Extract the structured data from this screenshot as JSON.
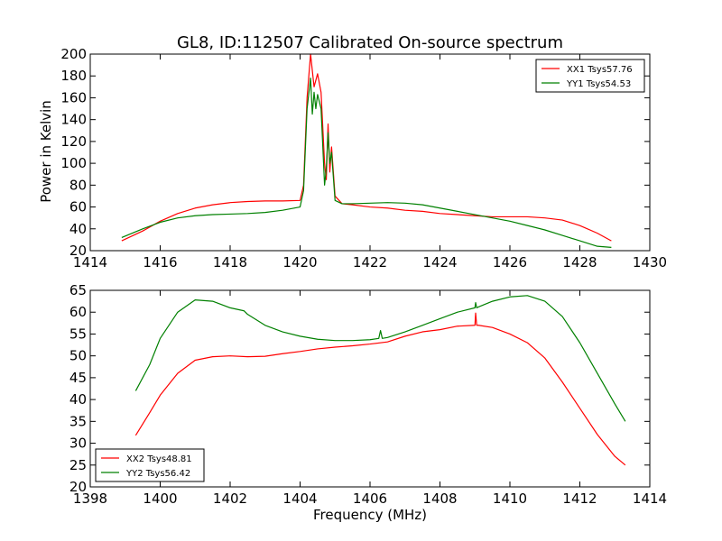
{
  "chart_data": [
    {
      "type": "line",
      "title": "GL8, ID:112507 Calibrated On-source spectrum",
      "xlabel": "",
      "ylabel": "Power in Kelvin",
      "xlim": [
        1414,
        1430
      ],
      "ylim": [
        20,
        200
      ],
      "xticks": [
        1414,
        1416,
        1418,
        1420,
        1422,
        1424,
        1426,
        1428,
        1430
      ],
      "yticks": [
        20,
        40,
        60,
        80,
        100,
        120,
        140,
        160,
        180,
        200
      ],
      "legend_position": "top-right",
      "grid": false,
      "series": [
        {
          "name": "XX1 Tsys57.76",
          "color": "#ff0000",
          "x": [
            1414.9,
            1415.5,
            1416.0,
            1416.5,
            1417.0,
            1417.5,
            1418.0,
            1418.5,
            1419.0,
            1419.5,
            1420.0,
            1420.1,
            1420.2,
            1420.3,
            1420.4,
            1420.5,
            1420.6,
            1420.7,
            1420.75,
            1420.8,
            1420.85,
            1420.9,
            1421.0,
            1421.2,
            1421.5,
            1422.0,
            1422.5,
            1423.0,
            1423.5,
            1424.0,
            1424.5,
            1425.0,
            1425.5,
            1426.0,
            1426.5,
            1427.0,
            1427.5,
            1428.0,
            1428.5,
            1428.9
          ],
          "y": [
            29,
            38,
            47,
            54,
            59,
            62,
            64,
            65,
            65.5,
            65.5,
            66,
            80,
            160,
            200,
            170,
            182,
            165,
            100,
            85,
            136,
            92,
            115,
            70,
            63,
            62,
            60,
            59,
            57,
            56,
            54,
            53,
            52,
            51,
            51,
            51,
            50,
            48,
            43,
            36,
            29
          ]
        },
        {
          "name": "YY1 Tsys54.53",
          "color": "#008000",
          "x": [
            1414.9,
            1415.5,
            1416.0,
            1416.5,
            1417.0,
            1417.5,
            1418.0,
            1418.5,
            1419.0,
            1419.5,
            1420.0,
            1420.1,
            1420.2,
            1420.3,
            1420.35,
            1420.4,
            1420.45,
            1420.5,
            1420.6,
            1420.7,
            1420.75,
            1420.8,
            1420.85,
            1420.9,
            1421.0,
            1421.2,
            1421.5,
            1422.0,
            1422.5,
            1423.0,
            1423.5,
            1424.0,
            1424.5,
            1425.0,
            1425.5,
            1426.0,
            1426.5,
            1427.0,
            1427.5,
            1428.0,
            1428.5,
            1428.9
          ],
          "y": [
            32,
            40,
            46,
            50,
            52,
            53,
            53.5,
            54,
            55,
            57,
            60,
            75,
            150,
            178,
            145,
            165,
            150,
            163,
            150,
            80,
            95,
            128,
            100,
            110,
            66,
            63,
            63,
            63.5,
            64,
            63.5,
            62,
            59,
            56,
            53,
            50,
            47,
            43,
            39,
            34,
            29,
            24,
            23
          ]
        }
      ]
    },
    {
      "type": "line",
      "title": "",
      "xlabel": "Frequency (MHz)",
      "ylabel": "",
      "xlim": [
        1398,
        1414
      ],
      "ylim": [
        20,
        65
      ],
      "xticks": [
        1398,
        1400,
        1402,
        1404,
        1406,
        1408,
        1410,
        1412,
        1414
      ],
      "yticks": [
        20,
        25,
        30,
        35,
        40,
        45,
        50,
        55,
        60,
        65
      ],
      "legend_position": "bottom-left",
      "grid": false,
      "series": [
        {
          "name": "XX2 Tsys48.81",
          "color": "#ff0000",
          "x": [
            1399.3,
            1399.7,
            1400.0,
            1400.5,
            1401.0,
            1401.5,
            1402.0,
            1402.5,
            1403.0,
            1403.5,
            1404.0,
            1404.5,
            1405.0,
            1405.5,
            1406.0,
            1406.5,
            1407.0,
            1407.5,
            1408.0,
            1408.5,
            1409.0,
            1409.02,
            1409.05,
            1409.1,
            1409.5,
            1410.0,
            1410.5,
            1411.0,
            1411.5,
            1412.0,
            1412.5,
            1413.0,
            1413.3
          ],
          "y": [
            31.8,
            37,
            41,
            46,
            49,
            49.8,
            50,
            49.8,
            49.9,
            50.5,
            51,
            51.6,
            52,
            52.3,
            52.7,
            53.2,
            54.5,
            55.5,
            56,
            56.8,
            57,
            59.8,
            57,
            57,
            56.5,
            55,
            53,
            49.5,
            44,
            38,
            32,
            27,
            25
          ]
        },
        {
          "name": "YY2 Tsys56.42",
          "color": "#008000",
          "x": [
            1399.3,
            1399.7,
            1400.0,
            1400.5,
            1401.0,
            1401.5,
            1402.0,
            1402.4,
            1402.5,
            1403.0,
            1403.5,
            1404.0,
            1404.5,
            1405.0,
            1405.5,
            1406.0,
            1406.25,
            1406.3,
            1406.35,
            1406.5,
            1407.0,
            1407.5,
            1408.0,
            1408.5,
            1409.0,
            1409.02,
            1409.05,
            1409.1,
            1409.5,
            1410.0,
            1410.5,
            1411.0,
            1411.5,
            1412.0,
            1412.5,
            1413.0,
            1413.3
          ],
          "y": [
            42,
            48,
            54,
            60,
            62.8,
            62.5,
            61,
            60.3,
            59.5,
            57,
            55.5,
            54.5,
            53.8,
            53.5,
            53.5,
            53.7,
            54,
            55.8,
            54,
            54.2,
            55.5,
            57,
            58.5,
            60,
            61,
            62.2,
            61,
            61.2,
            62.5,
            63.5,
            63.8,
            62.5,
            59,
            53,
            46,
            39,
            35
          ]
        }
      ]
    }
  ]
}
